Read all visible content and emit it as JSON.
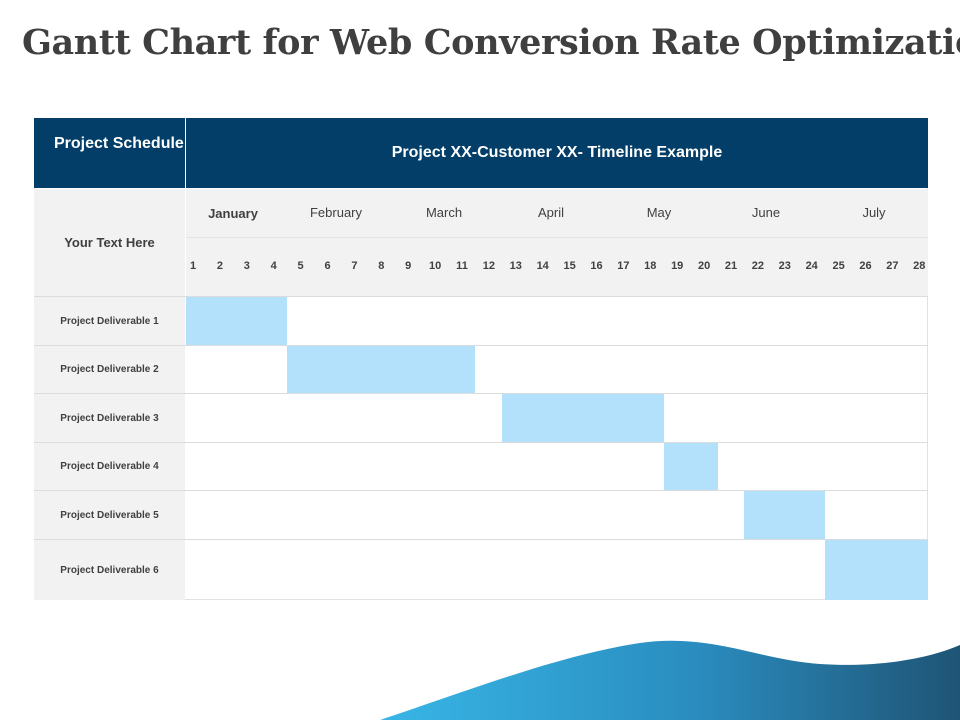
{
  "title": "Gantt Chart for Web Conversion Rate Optimization",
  "chart_data": {
    "type": "gantt",
    "header_left": "Project Schedule",
    "header_title": "Project XX-Customer XX- Timeline Example",
    "row_label_header": "Your Text Here",
    "months": [
      "January",
      "February",
      "March",
      "April",
      "May",
      "June",
      "July"
    ],
    "days": [
      1,
      2,
      3,
      4,
      5,
      6,
      7,
      8,
      9,
      10,
      11,
      12,
      13,
      14,
      15,
      16,
      17,
      18,
      19,
      20,
      21,
      22,
      23,
      24,
      25,
      26,
      27,
      28
    ],
    "tasks": [
      {
        "name": "Project Deliverable 1",
        "start": 1,
        "end": 4
      },
      {
        "name": "Project Deliverable 2",
        "start": 5,
        "end": 11
      },
      {
        "name": "Project Deliverable 3",
        "start": 13,
        "end": 18
      },
      {
        "name": "Project Deliverable 4",
        "start": 19,
        "end": 20
      },
      {
        "name": "Project Deliverable 5",
        "start": 22,
        "end": 24
      },
      {
        "name": "Project Deliverable 6",
        "start": 25,
        "end": 28
      }
    ],
    "bar_color": "#b3e1fc",
    "header_color": "#023e67"
  }
}
